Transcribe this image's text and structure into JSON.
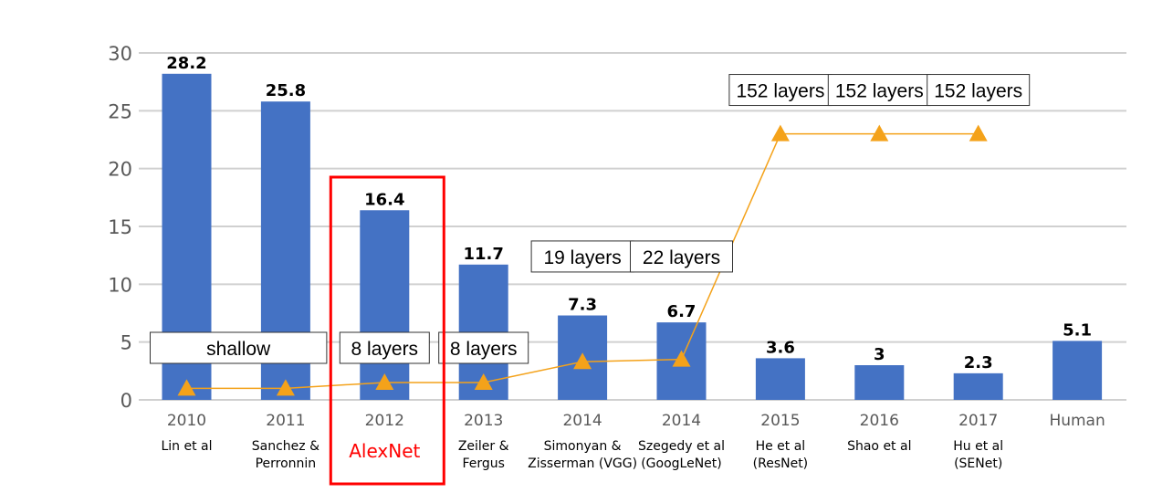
{
  "chart_data": {
    "type": "bar",
    "categories": [
      "2010",
      "2011",
      "2012",
      "2013",
      "2014",
      "2014",
      "2015",
      "2016",
      "2017",
      "Human"
    ],
    "subtitles": [
      [
        "Lin et al"
      ],
      [
        "Sanchez &",
        "Perronnin"
      ],
      [
        "AlexNet"
      ],
      [
        "Zeiler &",
        "Fergus"
      ],
      [
        "Simonyan &",
        "Zisserman (VGG)"
      ],
      [
        "Szegedy et al",
        "(GoogLeNet)"
      ],
      [
        "He et al",
        "(ResNet)"
      ],
      [
        "Shao et al"
      ],
      [
        "Hu et al",
        "(SENet)"
      ],
      [
        ""
      ]
    ],
    "values": [
      28.2,
      25.8,
      16.4,
      11.7,
      7.3,
      6.7,
      3.6,
      3,
      2.3,
      5.1
    ],
    "value_labels": [
      "28.2",
      "25.8",
      "16.4",
      "11.7",
      "7.3",
      "6.7",
      "3.6",
      "3",
      "2.3",
      "5.1"
    ],
    "ylim": [
      0,
      30
    ],
    "yticks": [
      0,
      5,
      10,
      15,
      20,
      25,
      30
    ],
    "grid": true,
    "bar_color": "#4472c4",
    "highlight_index": 2,
    "highlight_color": "#ff0000",
    "depth_line": {
      "color": "#f4a21a",
      "points": [
        1,
        1,
        1.5,
        1.5,
        3.3,
        3.5,
        23,
        23,
        23
      ]
    },
    "annotations": [
      {
        "text": "shallow",
        "cat_from": 0,
        "cat_to": 1,
        "level": 4.5
      },
      {
        "text": "8 layers",
        "cat_from": 2,
        "cat_to": 2,
        "level": 4.5
      },
      {
        "text": "8 layers",
        "cat_from": 3,
        "cat_to": 3,
        "level": 4.5
      },
      {
        "text": "19 layers",
        "cat_from": 4,
        "cat_to": 4,
        "level": 12.4
      },
      {
        "text": "22 layers",
        "cat_from": 5,
        "cat_to": 5,
        "level": 12.4
      },
      {
        "text": "152 layers",
        "cat_from": 6,
        "cat_to": 6,
        "level": 26.8
      },
      {
        "text": "152 layers",
        "cat_from": 7,
        "cat_to": 7,
        "level": 26.8
      },
      {
        "text": "152 layers",
        "cat_from": 8,
        "cat_to": 8,
        "level": 26.8
      }
    ]
  }
}
